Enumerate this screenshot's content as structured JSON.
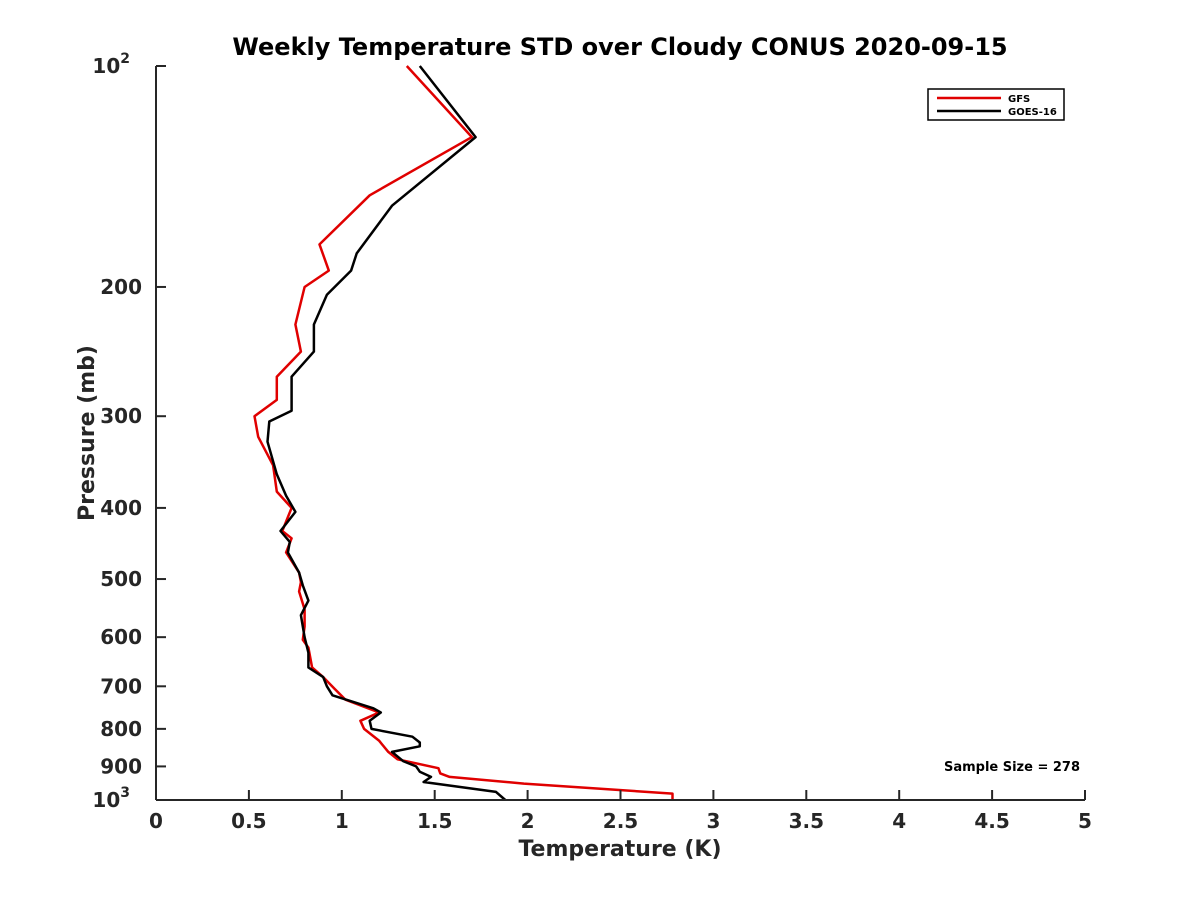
{
  "chart_data": {
    "type": "line",
    "title": "Weekly Temperature STD over Cloudy CONUS 2020-09-15",
    "xlabel": "Temperature (K)",
    "ylabel": "Pressure (mb)",
    "xlim": [
      0,
      5
    ],
    "ylim": [
      100,
      1000
    ],
    "yscale": "log",
    "y_reversed": true,
    "grid": false,
    "xticks": [
      {
        "value": 0,
        "label": "0"
      },
      {
        "value": 0.5,
        "label": "0.5"
      },
      {
        "value": 1,
        "label": "1"
      },
      {
        "value": 1.5,
        "label": "1.5"
      },
      {
        "value": 2,
        "label": "2"
      },
      {
        "value": 2.5,
        "label": "2.5"
      },
      {
        "value": 3,
        "label": "3"
      },
      {
        "value": 3.5,
        "label": "3.5"
      },
      {
        "value": 4,
        "label": "4"
      },
      {
        "value": 4.5,
        "label": "4.5"
      },
      {
        "value": 5,
        "label": "5"
      }
    ],
    "yticks": [
      {
        "value": 100,
        "label": "10",
        "sup": "2"
      },
      {
        "value": 200,
        "label": "200"
      },
      {
        "value": 300,
        "label": "300"
      },
      {
        "value": 400,
        "label": "400"
      },
      {
        "value": 500,
        "label": "500"
      },
      {
        "value": 600,
        "label": "600"
      },
      {
        "value": 700,
        "label": "700"
      },
      {
        "value": 800,
        "label": "800"
      },
      {
        "value": 900,
        "label": "900"
      },
      {
        "value": 1000,
        "label": "10",
        "sup": "3"
      }
    ],
    "legend": {
      "position": "top-right"
    },
    "annotation": "Sample Size = 278",
    "series": [
      {
        "name": "GFS",
        "color": "#e00000",
        "points": [
          [
            1.35,
            100
          ],
          [
            1.7,
            125
          ],
          [
            1.15,
            150
          ],
          [
            0.88,
            175
          ],
          [
            0.93,
            190
          ],
          [
            0.8,
            200
          ],
          [
            0.75,
            225
          ],
          [
            0.78,
            245
          ],
          [
            0.65,
            265
          ],
          [
            0.65,
            285
          ],
          [
            0.53,
            300
          ],
          [
            0.55,
            320
          ],
          [
            0.63,
            350
          ],
          [
            0.65,
            380
          ],
          [
            0.73,
            400
          ],
          [
            0.68,
            430
          ],
          [
            0.73,
            440
          ],
          [
            0.7,
            460
          ],
          [
            0.77,
            490
          ],
          [
            0.78,
            505
          ],
          [
            0.77,
            520
          ],
          [
            0.8,
            550
          ],
          [
            0.8,
            580
          ],
          [
            0.79,
            605
          ],
          [
            0.82,
            620
          ],
          [
            0.84,
            660
          ],
          [
            0.9,
            680
          ],
          [
            0.96,
            705
          ],
          [
            1.02,
            730
          ],
          [
            1.2,
            760
          ],
          [
            1.1,
            780
          ],
          [
            1.12,
            800
          ],
          [
            1.2,
            830
          ],
          [
            1.25,
            860
          ],
          [
            1.3,
            880
          ],
          [
            1.52,
            905
          ],
          [
            1.53,
            920
          ],
          [
            1.58,
            930
          ],
          [
            1.98,
            950
          ],
          [
            2.78,
            980
          ],
          [
            2.78,
            1000
          ]
        ]
      },
      {
        "name": "GOES-16",
        "color": "#000000",
        "points": [
          [
            1.42,
            100
          ],
          [
            1.72,
            125
          ],
          [
            1.27,
            155
          ],
          [
            1.08,
            180
          ],
          [
            1.05,
            190
          ],
          [
            0.92,
            205
          ],
          [
            0.85,
            225
          ],
          [
            0.85,
            245
          ],
          [
            0.73,
            265
          ],
          [
            0.73,
            295
          ],
          [
            0.61,
            305
          ],
          [
            0.6,
            325
          ],
          [
            0.65,
            360
          ],
          [
            0.7,
            385
          ],
          [
            0.75,
            405
          ],
          [
            0.67,
            430
          ],
          [
            0.72,
            445
          ],
          [
            0.71,
            460
          ],
          [
            0.77,
            490
          ],
          [
            0.79,
            510
          ],
          [
            0.82,
            535
          ],
          [
            0.78,
            560
          ],
          [
            0.8,
            600
          ],
          [
            0.82,
            630
          ],
          [
            0.82,
            660
          ],
          [
            0.9,
            680
          ],
          [
            0.92,
            700
          ],
          [
            0.95,
            720
          ],
          [
            1.17,
            750
          ],
          [
            1.21,
            760
          ],
          [
            1.15,
            780
          ],
          [
            1.16,
            800
          ],
          [
            1.38,
            820
          ],
          [
            1.42,
            835
          ],
          [
            1.42,
            845
          ],
          [
            1.27,
            860
          ],
          [
            1.33,
            885
          ],
          [
            1.4,
            900
          ],
          [
            1.42,
            915
          ],
          [
            1.48,
            930
          ],
          [
            1.44,
            945
          ],
          [
            1.83,
            975
          ],
          [
            1.88,
            1000
          ]
        ]
      }
    ]
  }
}
